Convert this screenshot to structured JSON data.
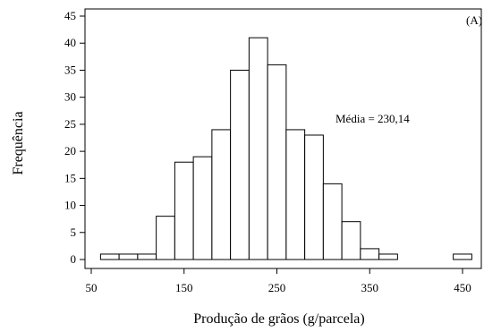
{
  "chart_data": {
    "type": "bar",
    "title": "",
    "panel_label": "(A)",
    "xlabel": "Produção de grãos (g/parcela)",
    "ylabel": "Frequência",
    "annotation": "Média = 230,14",
    "xlim": [
      40,
      465
    ],
    "ylim": [
      0,
      45
    ],
    "x_ticks": [
      50,
      150,
      250,
      350,
      450
    ],
    "y_ticks": [
      0,
      5,
      10,
      15,
      20,
      25,
      30,
      35,
      40,
      45
    ],
    "bin_width": 20,
    "bins": [
      {
        "start": 60,
        "end": 80,
        "count": 1
      },
      {
        "start": 80,
        "end": 100,
        "count": 1
      },
      {
        "start": 100,
        "end": 120,
        "count": 1
      },
      {
        "start": 120,
        "end": 140,
        "count": 8
      },
      {
        "start": 140,
        "end": 160,
        "count": 18
      },
      {
        "start": 160,
        "end": 180,
        "count": 19
      },
      {
        "start": 180,
        "end": 200,
        "count": 24
      },
      {
        "start": 200,
        "end": 220,
        "count": 35
      },
      {
        "start": 220,
        "end": 240,
        "count": 41
      },
      {
        "start": 240,
        "end": 260,
        "count": 36
      },
      {
        "start": 260,
        "end": 280,
        "count": 24
      },
      {
        "start": 280,
        "end": 300,
        "count": 23
      },
      {
        "start": 300,
        "end": 320,
        "count": 14
      },
      {
        "start": 320,
        "end": 340,
        "count": 7
      },
      {
        "start": 340,
        "end": 360,
        "count": 2
      },
      {
        "start": 360,
        "end": 380,
        "count": 1
      },
      {
        "start": 440,
        "end": 460,
        "count": 1
      }
    ]
  }
}
